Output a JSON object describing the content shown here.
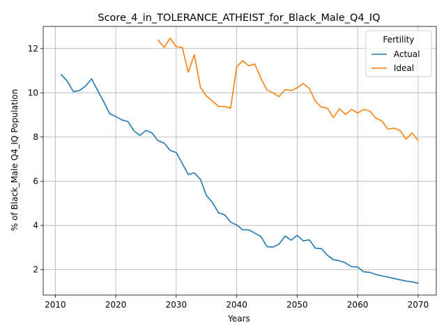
{
  "chart_data": {
    "type": "line",
    "title": "Score_4_in_TOLERANCE_ATHEIST_for_Black_Male_Q4_IQ",
    "xlabel": "Years",
    "ylabel": "% of Black_Male Q4_IQ Population",
    "xlim": [
      2008.0,
      2073.0
    ],
    "ylim": [
      0.85,
      13.0
    ],
    "xticks": [
      2010,
      2020,
      2030,
      2040,
      2050,
      2060,
      2070
    ],
    "yticks": [
      2,
      4,
      6,
      8,
      10,
      12
    ],
    "grid": true,
    "legend": {
      "title": "Fertility",
      "position": "top-right"
    },
    "series": [
      {
        "name": "Actual",
        "color": "#1f77b4",
        "x": [
          2011,
          2012,
          2013,
          2014,
          2015,
          2016,
          2017,
          2018,
          2019,
          2020,
          2021,
          2022,
          2023,
          2024,
          2025,
          2026,
          2027,
          2028,
          2029,
          2030,
          2031,
          2032,
          2033,
          2034,
          2035,
          2036,
          2037,
          2038,
          2039,
          2040,
          2041,
          2042,
          2043,
          2044,
          2045,
          2046,
          2047,
          2048,
          2049,
          2050,
          2051,
          2052,
          2053,
          2054,
          2055,
          2056,
          2057,
          2058,
          2059,
          2060,
          2061,
          2062,
          2063,
          2064,
          2065,
          2066,
          2067,
          2068,
          2069,
          2070
        ],
        "y": [
          10.82,
          10.52,
          10.05,
          10.1,
          10.3,
          10.63,
          10.1,
          9.6,
          9.05,
          8.93,
          8.77,
          8.7,
          8.28,
          8.07,
          8.3,
          8.18,
          7.83,
          7.72,
          7.39,
          7.3,
          6.8,
          6.3,
          6.38,
          6.08,
          5.35,
          5.03,
          4.57,
          4.48,
          4.15,
          4.02,
          3.8,
          3.8,
          3.65,
          3.5,
          3.04,
          3.02,
          3.15,
          3.52,
          3.33,
          3.55,
          3.3,
          3.35,
          2.97,
          2.95,
          2.65,
          2.45,
          2.4,
          2.3,
          2.13,
          2.12,
          1.9,
          1.88,
          1.78,
          1.72,
          1.66,
          1.6,
          1.54,
          1.48,
          1.45,
          1.38
        ]
      },
      {
        "name": "Ideal",
        "color": "#ff7f0e",
        "x": [
          2027,
          2028,
          2029,
          2030,
          2031,
          2032,
          2033,
          2034,
          2035,
          2036,
          2037,
          2038,
          2039,
          2040,
          2041,
          2042,
          2043,
          2044,
          2045,
          2046,
          2047,
          2048,
          2049,
          2050,
          2051,
          2052,
          2053,
          2054,
          2055,
          2056,
          2057,
          2058,
          2059,
          2060,
          2061,
          2062,
          2063,
          2064,
          2065,
          2066,
          2067,
          2068,
          2069,
          2070
        ],
        "y": [
          12.38,
          12.05,
          12.47,
          12.08,
          12.05,
          10.93,
          11.72,
          10.25,
          9.85,
          9.62,
          9.38,
          9.38,
          9.3,
          11.18,
          11.45,
          11.22,
          11.3,
          10.65,
          10.13,
          10.0,
          9.82,
          10.15,
          10.1,
          10.22,
          10.42,
          10.2,
          9.62,
          9.35,
          9.3,
          8.88,
          9.28,
          9.02,
          9.25,
          9.08,
          9.25,
          9.18,
          8.85,
          8.73,
          8.35,
          8.4,
          8.3,
          7.9,
          8.18,
          7.85
        ]
      }
    ]
  }
}
